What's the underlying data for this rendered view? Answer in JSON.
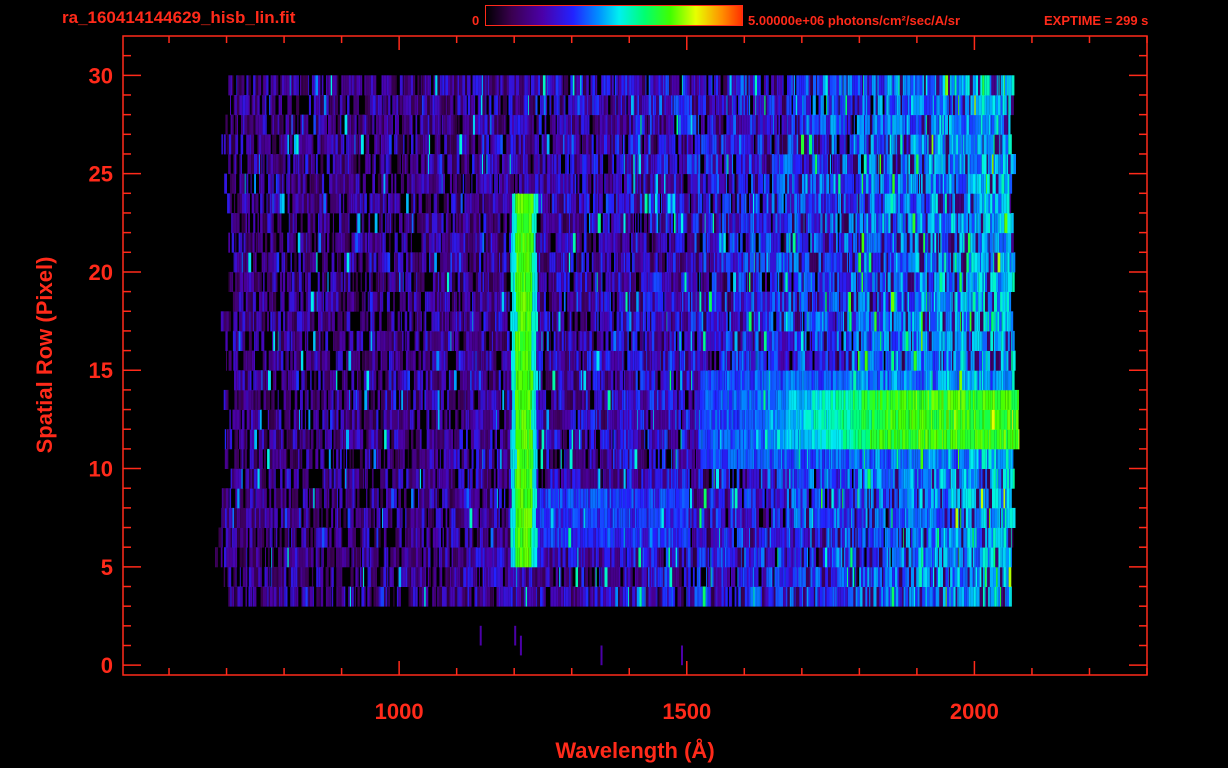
{
  "header": {
    "file_title": "ra_160414144629_hisb_lin.fit",
    "colorbar_min": "0",
    "colorbar_max": "5.00000e+06 photons/cm²/sec/A/sr",
    "exptime": "EXPTIME = 299 s"
  },
  "colors": {
    "text": "#ff2a1a",
    "background": "#000000",
    "colormap": [
      "#000000",
      "#3a0050",
      "#4b00a8",
      "#2222ff",
      "#0090ff",
      "#00f0f0",
      "#00ff70",
      "#40ff00",
      "#e8ff00",
      "#ff9000",
      "#ff3000"
    ]
  },
  "chart_data": {
    "type": "heatmap",
    "title": "ra_160414144629_hisb_lin.fit",
    "xlabel": "Wavelength (Å)",
    "ylabel": "Spatial Row (Pixel)",
    "xlim": [
      520,
      2300
    ],
    "ylim": [
      -0.5,
      32
    ],
    "x_ticks": [
      1000,
      1500,
      2000
    ],
    "x_tick_labels": [
      "1000",
      "1500",
      "2000"
    ],
    "y_ticks": [
      0,
      5,
      10,
      15,
      20,
      25,
      30
    ],
    "y_tick_labels": [
      "0",
      "5",
      "10",
      "15",
      "20",
      "25",
      "30"
    ],
    "colorbar_range": [
      0,
      5000000
    ],
    "colorbar_units": "photons/cm²/sec/A/sr",
    "exptime_s": 299,
    "data_extent": {
      "wavelength": [
        690,
        2070
      ],
      "rows": [
        3,
        30
      ]
    },
    "features": [
      {
        "name": "vertical emission line",
        "wavelength": 1215,
        "rows": [
          5,
          23.5
        ],
        "intensity": 0.7
      },
      {
        "name": "bright continuum band",
        "wavelength": [
          1600,
          2070
        ],
        "rows": [
          11,
          14
        ],
        "intensity": 0.68
      },
      {
        "name": "lower continuum band",
        "wavelength": [
          1200,
          2070
        ],
        "rows": [
          6,
          9
        ],
        "intensity": 0.4
      }
    ]
  }
}
